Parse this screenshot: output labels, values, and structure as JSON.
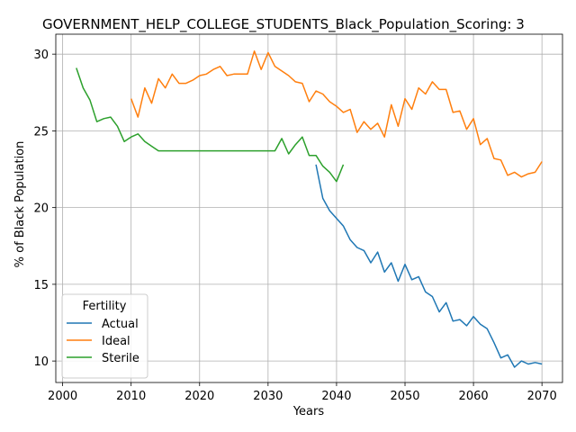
{
  "chart_data": {
    "type": "line",
    "title": "GOVERNMENT_HELP_COLLEGE_STUDENTS_Black_Population_Scoring: 3",
    "xlabel": "Years",
    "ylabel": "% of Black Population",
    "xlim": [
      1999,
      2073
    ],
    "ylim": [
      8.6,
      31.3
    ],
    "xticks": [
      2000,
      2010,
      2020,
      2030,
      2040,
      2050,
      2060,
      2070
    ],
    "yticks": [
      10,
      15,
      20,
      25,
      30
    ],
    "grid": true,
    "legend": {
      "title": "Fertility",
      "position": "lower-left"
    },
    "series": [
      {
        "name": "Actual",
        "color": "#1f77b4",
        "x": [
          2037,
          2038,
          2039,
          2040,
          2041,
          2042,
          2043,
          2044,
          2045,
          2046,
          2047,
          2048,
          2049,
          2050,
          2051,
          2052,
          2053,
          2054,
          2055,
          2056,
          2057,
          2058,
          2059,
          2060,
          2061,
          2062,
          2063,
          2064,
          2065,
          2066,
          2067,
          2068,
          2069,
          2070
        ],
        "y": [
          22.8,
          20.6,
          19.8,
          19.3,
          18.8,
          17.9,
          17.4,
          17.2,
          16.4,
          17.1,
          15.8,
          16.4,
          15.2,
          16.3,
          15.3,
          15.5,
          14.5,
          14.2,
          13.2,
          13.8,
          12.6,
          12.7,
          12.3,
          12.9,
          12.4,
          12.1,
          11.2,
          10.2,
          10.4,
          9.6,
          10.0,
          9.8,
          9.9,
          9.8
        ]
      },
      {
        "name": "Ideal",
        "color": "#ff7f0e",
        "x": [
          2010,
          2011,
          2012,
          2013,
          2014,
          2015,
          2016,
          2017,
          2018,
          2019,
          2020,
          2021,
          2022,
          2023,
          2024,
          2025,
          2026,
          2027,
          2028,
          2029,
          2030,
          2031,
          2032,
          2033,
          2034,
          2035,
          2036,
          2037,
          2038,
          2039,
          2040,
          2041,
          2042,
          2043,
          2044,
          2045,
          2046,
          2047,
          2048,
          2049,
          2050,
          2051,
          2052,
          2053,
          2054,
          2055,
          2056,
          2057,
          2058,
          2059,
          2060,
          2061,
          2062,
          2063,
          2064,
          2065,
          2066,
          2067,
          2068,
          2069,
          2070
        ],
        "y": [
          27.1,
          25.9,
          27.8,
          26.8,
          28.4,
          27.8,
          28.7,
          28.1,
          28.1,
          28.3,
          28.6,
          28.7,
          29.0,
          29.2,
          28.6,
          28.7,
          28.7,
          28.7,
          30.2,
          29.0,
          30.1,
          29.2,
          28.9,
          28.6,
          28.2,
          28.1,
          26.9,
          27.6,
          27.4,
          26.9,
          26.6,
          26.2,
          26.4,
          24.9,
          25.6,
          25.1,
          25.5,
          24.6,
          26.7,
          25.3,
          27.1,
          26.4,
          27.8,
          27.4,
          28.2,
          27.7,
          27.7,
          26.2,
          26.3,
          25.1,
          25.8,
          24.1,
          24.5,
          23.2,
          23.1,
          22.1,
          22.3,
          22.0,
          22.2,
          22.3,
          23.0
        ]
      },
      {
        "name": "Sterile",
        "color": "#2ca02c",
        "x": [
          2002,
          2003,
          2004,
          2005,
          2006,
          2007,
          2008,
          2009,
          2010,
          2011,
          2012,
          2013,
          2014,
          2015,
          2016,
          2017,
          2018,
          2019,
          2020,
          2021,
          2022,
          2023,
          2024,
          2025,
          2026,
          2027,
          2028,
          2029,
          2030,
          2031,
          2032,
          2033,
          2034,
          2035,
          2036,
          2037,
          2038,
          2039,
          2040,
          2041
        ],
        "y": [
          29.1,
          27.8,
          27.0,
          25.6,
          25.8,
          25.9,
          25.3,
          24.3,
          24.6,
          24.8,
          24.3,
          24.0,
          23.7,
          23.7,
          23.7,
          23.7,
          23.7,
          23.7,
          23.7,
          23.7,
          23.7,
          23.7,
          23.7,
          23.7,
          23.7,
          23.7,
          23.7,
          23.7,
          23.7,
          23.7,
          24.5,
          23.5,
          24.1,
          24.6,
          23.4,
          23.4,
          22.7,
          22.3,
          21.7,
          22.8
        ]
      }
    ]
  }
}
